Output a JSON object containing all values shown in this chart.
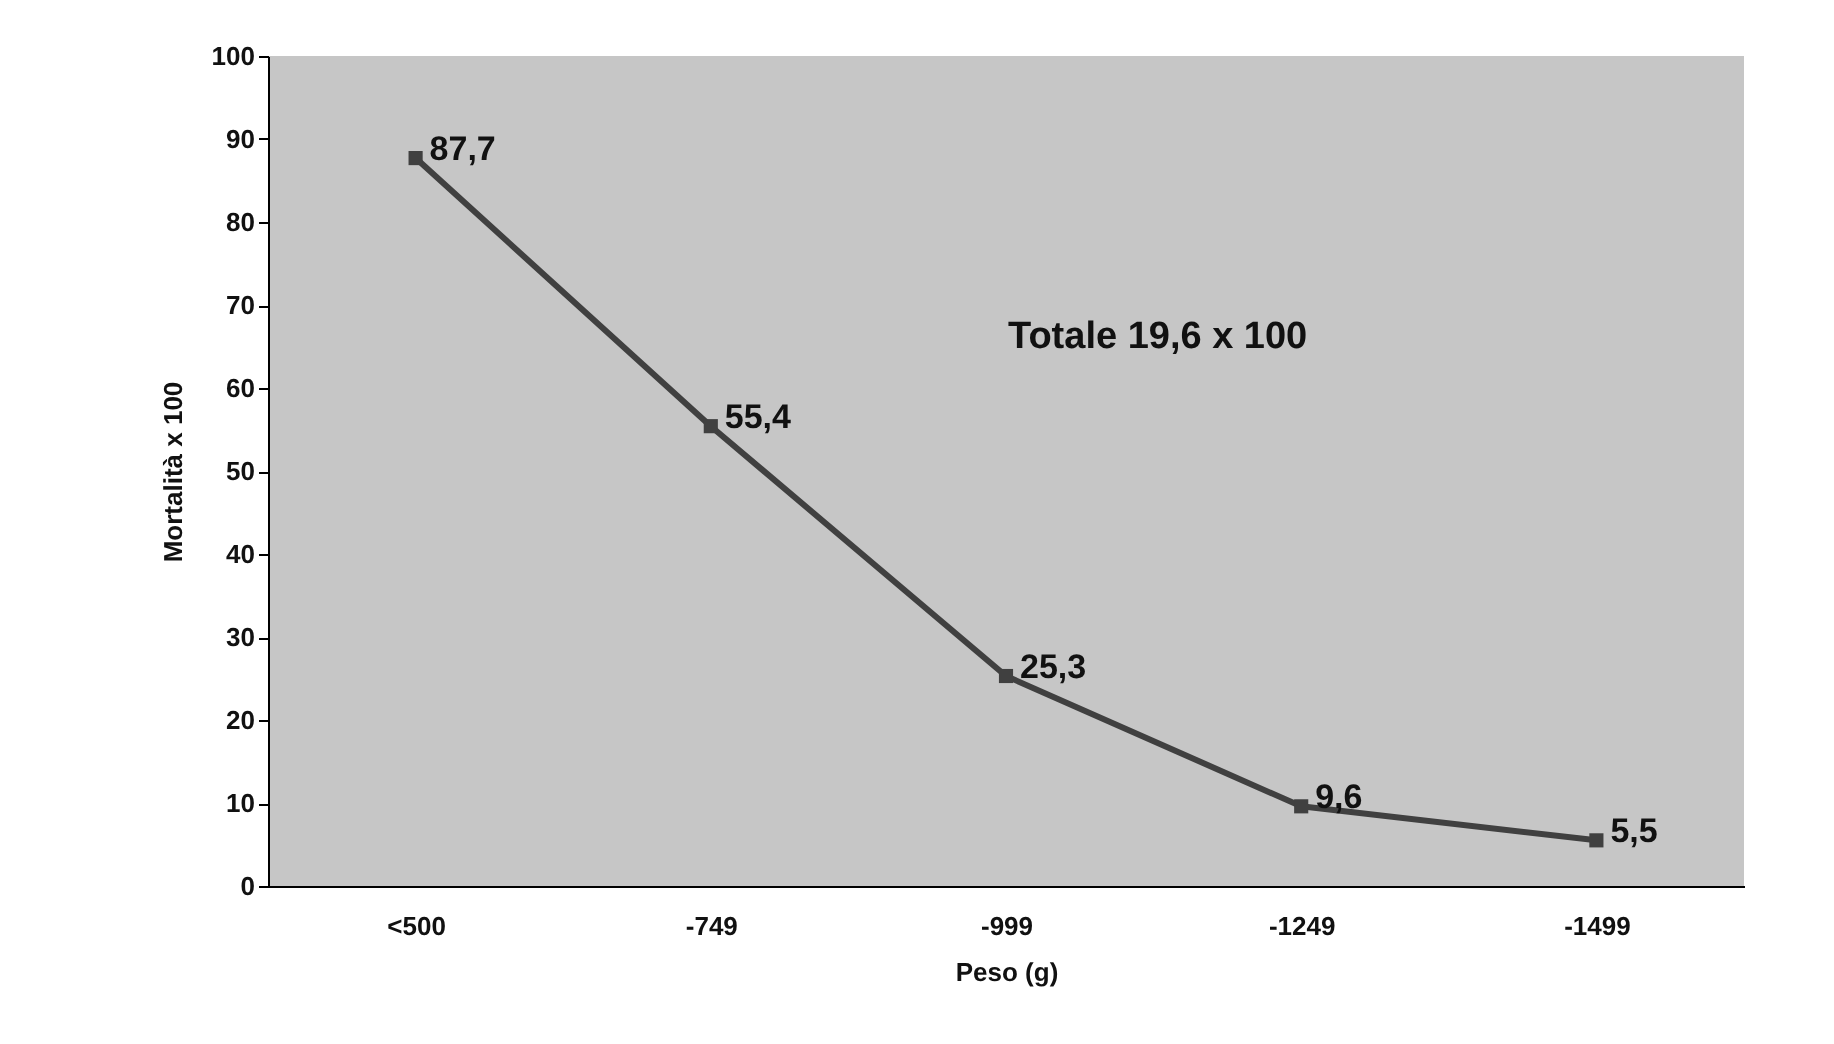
{
  "chart_data": {
    "type": "line",
    "categories": [
      "<500",
      "-749",
      "-999",
      "-1249",
      "-1499"
    ],
    "values": [
      87.7,
      55.4,
      25.3,
      9.6,
      5.5
    ],
    "value_labels": [
      "87,7",
      "55,4",
      "25,3",
      "9,6",
      "5,5"
    ],
    "color": "#404040",
    "marker": "square",
    "line_style": "solid",
    "xlabel": "Peso (g)",
    "ylabel": "Mortalità x 100",
    "annotations": [
      "Totale 19,6 x 100"
    ],
    "ylim": [
      0,
      100
    ],
    "yticks": [
      0,
      10,
      20,
      30,
      40,
      50,
      60,
      70,
      80,
      90,
      100
    ],
    "grid": false
  }
}
